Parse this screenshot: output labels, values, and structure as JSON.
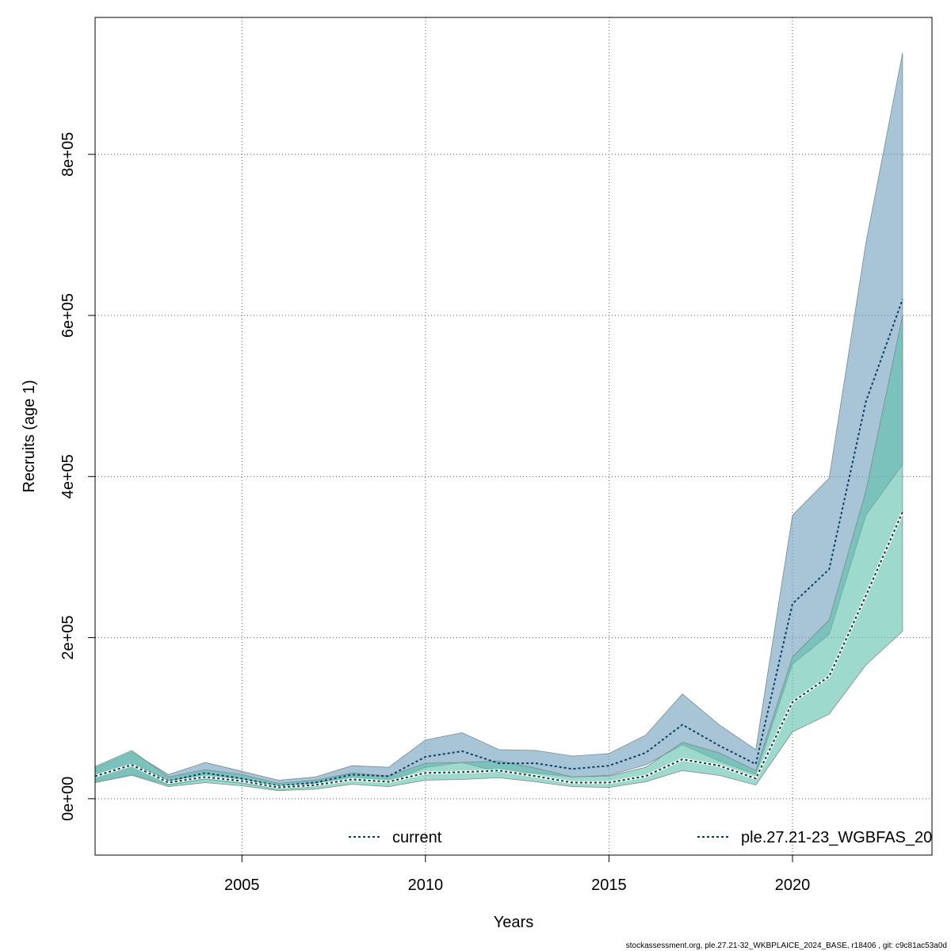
{
  "chart_data": {
    "type": "area",
    "xlabel": "Years",
    "ylabel": "Recruits (age 1)",
    "xlim": [
      2001,
      2023.8
    ],
    "ylim": [
      -70000,
      970000
    ],
    "x_ticks": [
      2005,
      2010,
      2015,
      2020
    ],
    "y_ticks": [
      0,
      200000,
      400000,
      600000,
      800000
    ],
    "y_tick_labels": [
      "0e+00",
      "2e+05",
      "4e+05",
      "6e+05",
      "8e+05"
    ],
    "grid": true,
    "legend_position": "bottom",
    "x": [
      2001,
      2002,
      2003,
      2004,
      2005,
      2006,
      2007,
      2008,
      2009,
      2010,
      2011,
      2012,
      2013,
      2014,
      2015,
      2016,
      2017,
      2018,
      2019,
      2020,
      2021,
      2022,
      2023
    ],
    "series": [
      {
        "name": "current",
        "color": "#6e9fbe",
        "line_color": "#0b3d66",
        "values": [
          28000,
          43000,
          22000,
          32000,
          25000,
          16000,
          20000,
          30000,
          28000,
          52000,
          59000,
          44000,
          44000,
          37000,
          41000,
          57000,
          92000,
          66000,
          43000,
          242000,
          285000,
          493000,
          620000
        ],
        "lower": [
          20000,
          30000,
          17000,
          24000,
          19000,
          12000,
          15000,
          23000,
          21000,
          39000,
          45000,
          33000,
          32000,
          27000,
          29000,
          42000,
          67000,
          47000,
          30000,
          167000,
          204000,
          352000,
          415000
        ],
        "upper": [
          38000,
          58000,
          30000,
          45000,
          34000,
          23000,
          27000,
          41000,
          39000,
          73000,
          82000,
          61000,
          60000,
          53000,
          56000,
          79000,
          130000,
          92000,
          61000,
          352000,
          398000,
          690000,
          926000
        ]
      },
      {
        "name": "ple.27.21-23_WGBFAS_20",
        "color": "#5dbfab",
        "line_color": "#063d33",
        "values": [
          28000,
          42000,
          20000,
          27000,
          22000,
          14000,
          17000,
          24000,
          21000,
          32000,
          33000,
          35000,
          28000,
          20000,
          20000,
          28000,
          49000,
          41000,
          25000,
          120000,
          152000,
          252000,
          356000
        ],
        "lower": [
          20000,
          29000,
          15000,
          20000,
          16000,
          10000,
          12000,
          18000,
          15000,
          23000,
          24000,
          26000,
          21000,
          15000,
          14000,
          21000,
          35000,
          29000,
          17000,
          83000,
          105000,
          166000,
          208000
        ],
        "upper": [
          40000,
          60000,
          27000,
          36000,
          30000,
          19000,
          23000,
          32000,
          28000,
          44000,
          45000,
          47000,
          38000,
          27000,
          28000,
          39000,
          70000,
          57000,
          35000,
          176000,
          222000,
          382000,
          600000
        ]
      }
    ]
  },
  "footer": "stockassessment.org, ple.27.21-32_WKBPLAICE_2024_BASE, r18406 , git: c9c81ac53a0d"
}
